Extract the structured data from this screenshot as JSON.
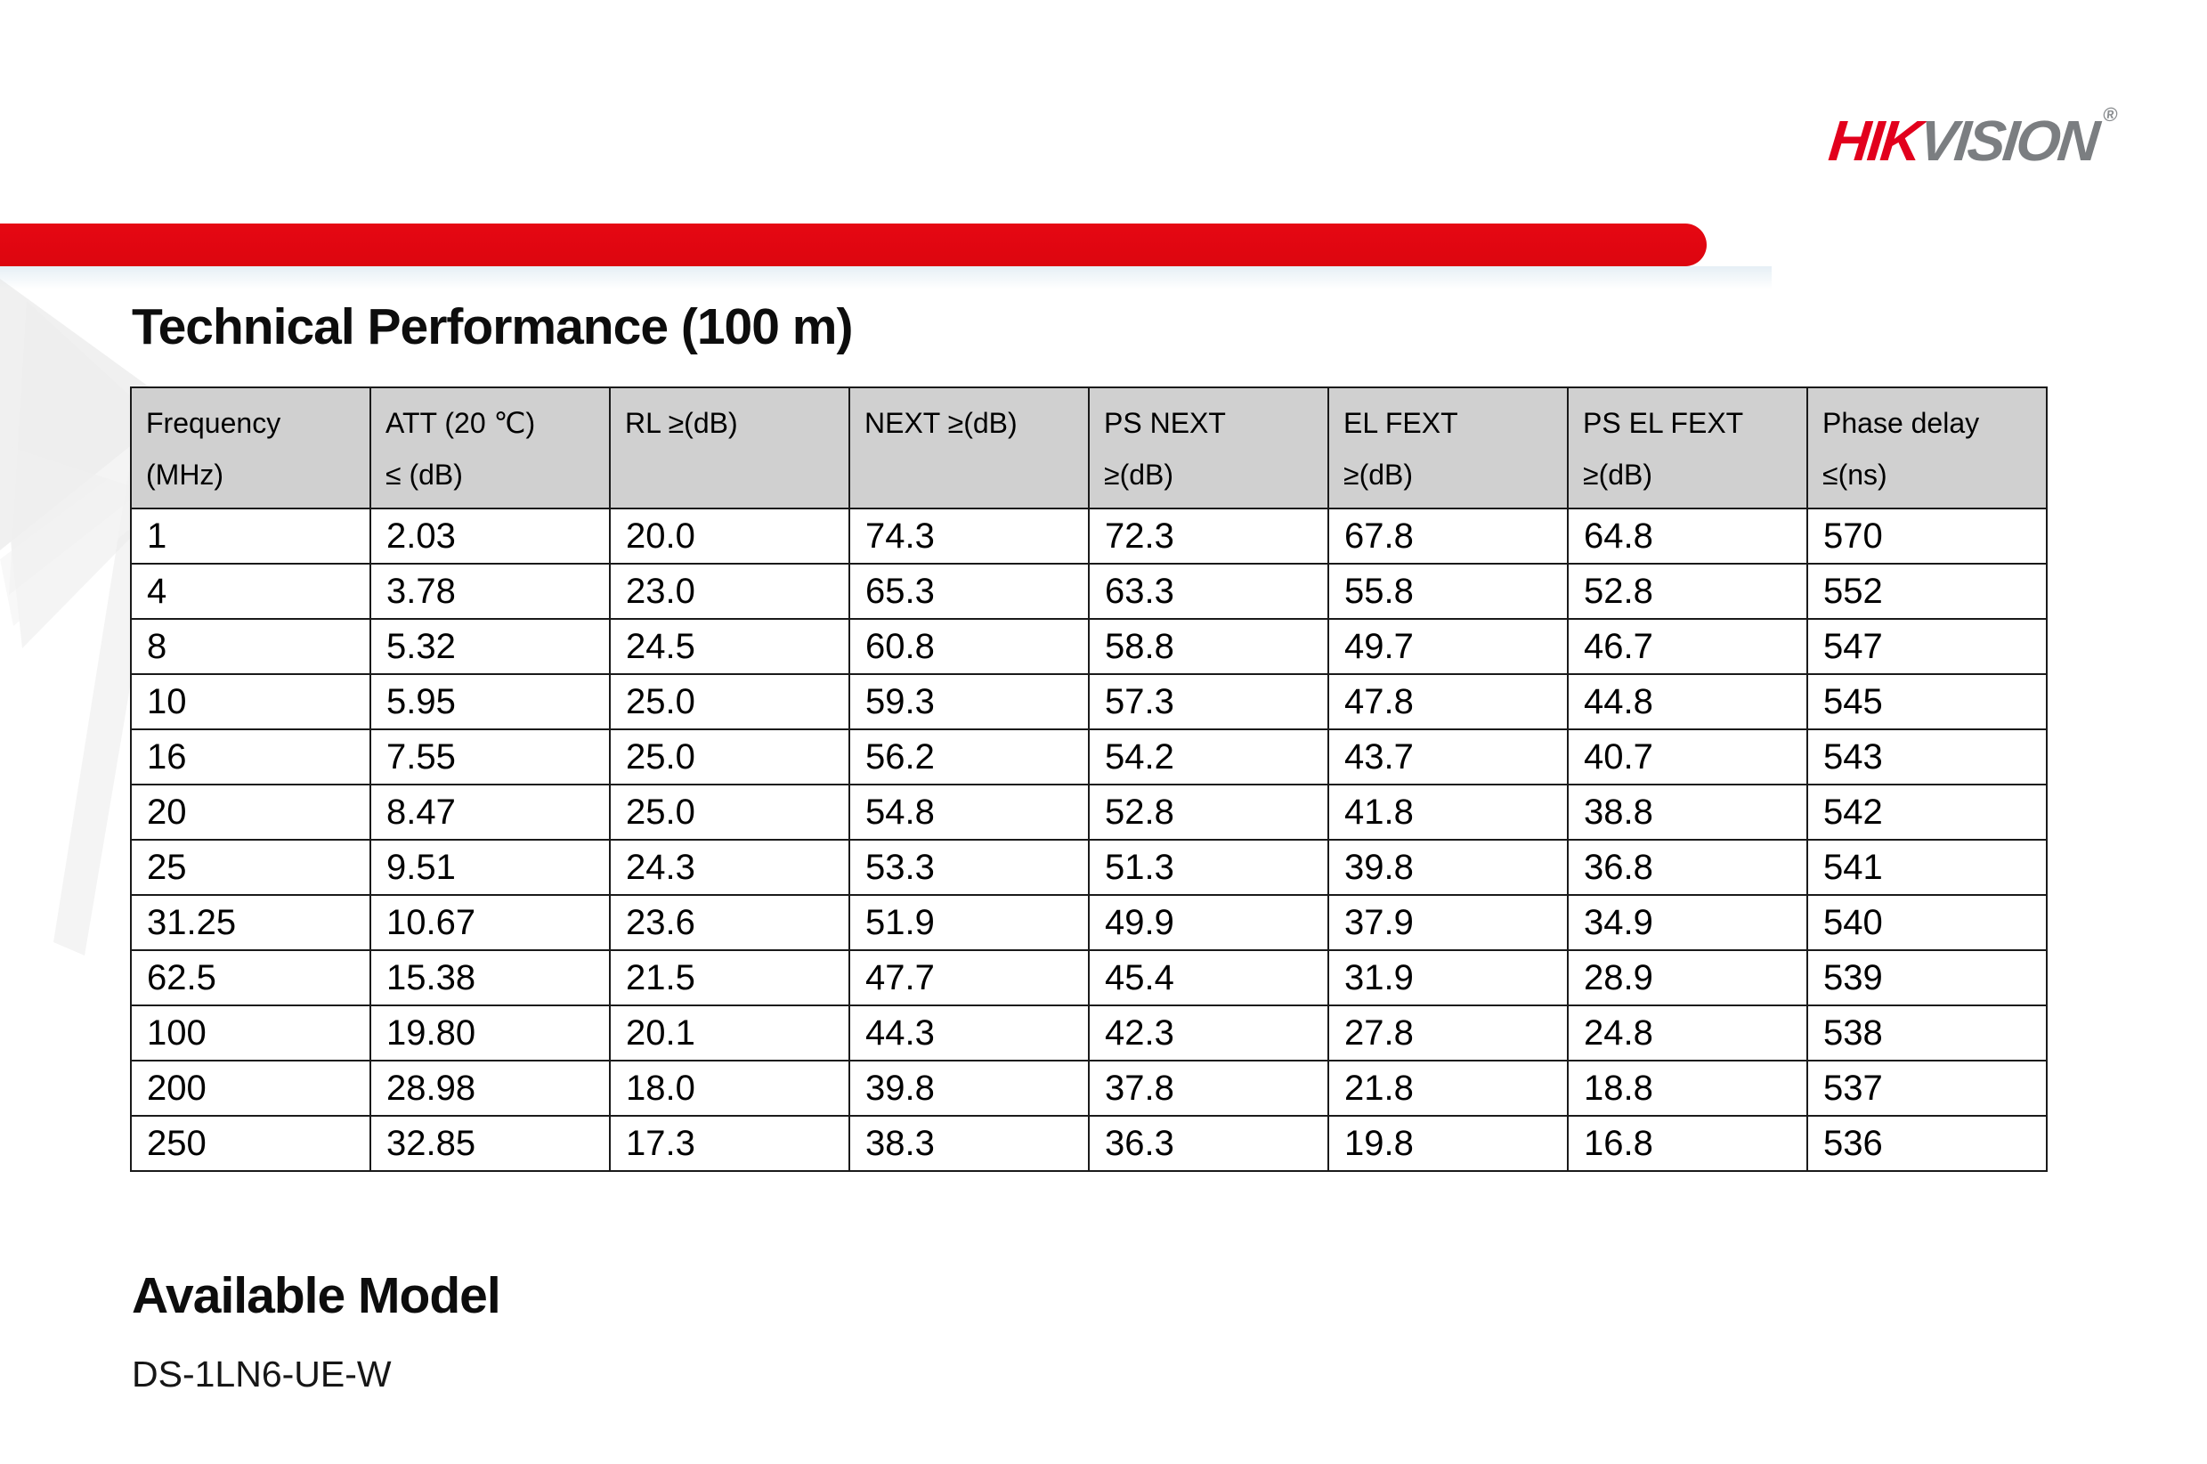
{
  "brand": {
    "logo_hik": "HIK",
    "logo_vision": "VISION",
    "logo_reg": "®"
  },
  "sections": {
    "technical_performance": {
      "title": "Technical Performance (100 m)"
    },
    "available_model": {
      "title": "Available Model",
      "model": "DS-1LN6-UE-W"
    }
  },
  "table": {
    "columns": [
      {
        "line1": "Frequency",
        "line2": "(MHz)"
      },
      {
        "line1": "ATT (20 ℃)",
        "line2": "≤ (dB)"
      },
      {
        "line1": "RL ≥(dB)",
        "line2": ""
      },
      {
        "line1": "NEXT ≥(dB)",
        "line2": ""
      },
      {
        "line1": "PS NEXT",
        "line2": "≥(dB)"
      },
      {
        "line1": "EL FEXT",
        "line2": "≥(dB)"
      },
      {
        "line1": "PS EL FEXT",
        "line2": "≥(dB)"
      },
      {
        "line1": "Phase delay",
        "line2": "≤(ns)"
      }
    ],
    "rows": [
      [
        "1",
        "2.03",
        "20.0",
        "74.3",
        "72.3",
        "67.8",
        "64.8",
        "570"
      ],
      [
        "4",
        "3.78",
        "23.0",
        "65.3",
        "63.3",
        "55.8",
        "52.8",
        "552"
      ],
      [
        "8",
        "5.32",
        "24.5",
        "60.8",
        "58.8",
        "49.7",
        "46.7",
        "547"
      ],
      [
        "10",
        "5.95",
        "25.0",
        "59.3",
        "57.3",
        "47.8",
        "44.8",
        "545"
      ],
      [
        "16",
        "7.55",
        "25.0",
        "56.2",
        "54.2",
        "43.7",
        "40.7",
        "543"
      ],
      [
        "20",
        "8.47",
        "25.0",
        "54.8",
        "52.8",
        "41.8",
        "38.8",
        "542"
      ],
      [
        "25",
        "9.51",
        "24.3",
        "53.3",
        "51.3",
        "39.8",
        "36.8",
        "541"
      ],
      [
        "31.25",
        "10.67",
        "23.6",
        "51.9",
        "49.9",
        "37.9",
        "34.9",
        "540"
      ],
      [
        "62.5",
        "15.38",
        "21.5",
        "47.7",
        "45.4",
        "31.9",
        "28.9",
        "539"
      ],
      [
        "100",
        "19.80",
        "20.1",
        "44.3",
        "42.3",
        "27.8",
        "24.8",
        "538"
      ],
      [
        "200",
        "28.98",
        "18.0",
        "39.8",
        "37.8",
        "21.8",
        "18.8",
        "537"
      ],
      [
        "250",
        "32.85",
        "17.3",
        "38.3",
        "36.3",
        "19.8",
        "16.8",
        "536"
      ]
    ]
  },
  "colors": {
    "brand_red": "#e2001c",
    "band_red": "#e00712",
    "logo_gray": "#7b7e81",
    "table_header_bg": "#d0d0d0",
    "table_border": "#1a1a1a"
  }
}
